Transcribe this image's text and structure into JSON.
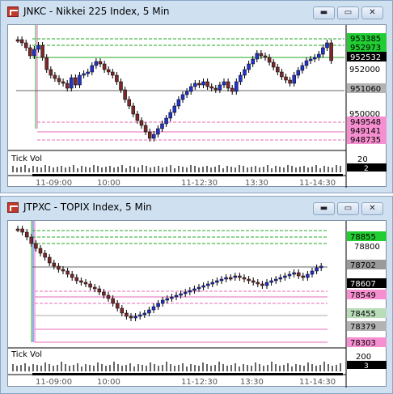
{
  "windows": [
    {
      "title": "JNKC - Nikkei 225 Index, 5 Min",
      "tick_vol_label": "Tick Vol",
      "scale_labels": [
        "952000",
        "950000"
      ],
      "price_tags": [
        {
          "text": "953385",
          "bg": "#22cc33",
          "fg": "#000000"
        },
        {
          "text": "952973",
          "bg": "#22cc33",
          "fg": "#000000"
        },
        {
          "text": "952532",
          "bg": "#000000",
          "fg": "#ffffff"
        },
        {
          "text": "951060",
          "bg": "#b3b3b3",
          "fg": "#000000"
        },
        {
          "text": "949548",
          "bg": "#f58fcf",
          "fg": "#000000"
        },
        {
          "text": "949141",
          "bg": "#f58fcf",
          "fg": "#000000"
        },
        {
          "text": "948735",
          "bg": "#f58fcf",
          "fg": "#000000"
        }
      ],
      "vol_scale_label": "20",
      "vol_tag": "2",
      "time_labels": [
        "11-09:00",
        "10:00",
        "11-12:30",
        "13:30",
        "11-14:30"
      ]
    },
    {
      "title": "JTPXC - TOPIX Index, 5 Min",
      "tick_vol_label": "Tick Vol",
      "scale_labels": [
        "78800"
      ],
      "price_tags": [
        {
          "text": "78855",
          "bg": "#22cc33",
          "fg": "#000000"
        },
        {
          "text": "78702",
          "bg": "#9a9a9a",
          "fg": "#000000"
        },
        {
          "text": "78607",
          "bg": "#000000",
          "fg": "#ffffff"
        },
        {
          "text": "78549",
          "bg": "#f58fcf",
          "fg": "#000000"
        },
        {
          "text": "78455",
          "bg": "#b9dcb9",
          "fg": "#000000"
        },
        {
          "text": "78379",
          "bg": "#b3b3b3",
          "fg": "#000000"
        },
        {
          "text": "78303",
          "bg": "#f58fcf",
          "fg": "#000000"
        }
      ],
      "vol_scale_label": "200",
      "vol_tag": "3",
      "time_labels": [
        "11-09:00",
        "10:00",
        "11-12:30",
        "13:30",
        "11-14:30"
      ]
    }
  ],
  "window_buttons": {
    "minimize": "▬",
    "maximize": "▭",
    "close": "✕"
  }
}
